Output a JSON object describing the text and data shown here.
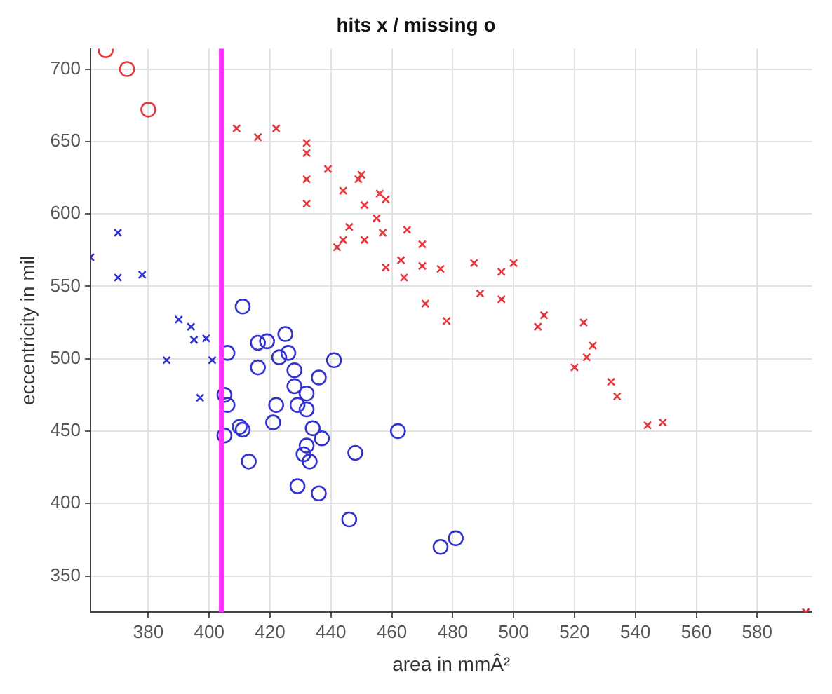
{
  "chart_data": {
    "type": "scatter",
    "title": "hits x / missing o",
    "xlabel": "area in mmÂ²",
    "ylabel": "eccentricity in mil",
    "xlim": [
      361,
      598
    ],
    "ylim": [
      325,
      714
    ],
    "xticks": [
      380,
      400,
      420,
      440,
      460,
      480,
      500,
      520,
      540,
      560,
      580
    ],
    "yticks": [
      350,
      400,
      450,
      500,
      550,
      600,
      650,
      700
    ],
    "grid": true,
    "ref_lines": [
      {
        "axis": "x",
        "value": 404,
        "label": null,
        "color": "#ff33ff"
      }
    ],
    "series": [
      {
        "marker": "cross",
        "color": "#e8383d",
        "x": [
          409,
          416,
          422,
          432,
          432,
          432,
          432,
          439,
          444,
          449,
          450,
          451,
          456,
          458,
          455,
          457,
          446,
          444,
          442,
          451,
          458,
          463,
          464,
          465,
          470,
          470,
          476,
          487,
          496,
          500,
          489,
          496,
          471,
          478,
          508,
          510,
          523,
          526,
          524,
          520,
          532,
          534,
          544,
          549,
          596
        ],
        "values": [
          659,
          653,
          659,
          649,
          642,
          624,
          607,
          631,
          616,
          624,
          627,
          606,
          614,
          610,
          597,
          587,
          591,
          582,
          577,
          582,
          563,
          568,
          556,
          589,
          579,
          564,
          562,
          566,
          560,
          566,
          545,
          541,
          538,
          526,
          522,
          530,
          525,
          509,
          501,
          494,
          484,
          474,
          454,
          456,
          325
        ]
      },
      {
        "marker": "circle",
        "color": "#e8383d",
        "x": [
          366,
          373,
          380
        ],
        "values": [
          713,
          700,
          672
        ]
      },
      {
        "marker": "cross",
        "color": "#3232d0",
        "x": [
          361,
          370,
          370,
          378,
          390,
          394,
          395,
          399,
          386,
          401,
          397
        ],
        "values": [
          570,
          587,
          556,
          558,
          527,
          522,
          513,
          514,
          499,
          499,
          473
        ]
      },
      {
        "marker": "circle",
        "color": "#3232d0",
        "x": [
          406,
          411,
          416,
          419,
          425,
          423,
          426,
          416,
          428,
          436,
          441,
          428,
          432,
          405,
          406,
          429,
          432,
          422,
          421,
          410,
          411,
          405,
          434,
          432,
          437,
          431,
          433,
          413,
          448,
          429,
          436,
          446,
          462,
          476,
          481
        ],
        "values": [
          504,
          536,
          511,
          512,
          517,
          501,
          504,
          494,
          492,
          487,
          499,
          481,
          476,
          475,
          468,
          468,
          465,
          468,
          456,
          453,
          451,
          447,
          452,
          440,
          445,
          434,
          429,
          429,
          435,
          412,
          407,
          389,
          450,
          370,
          376
        ]
      }
    ]
  }
}
